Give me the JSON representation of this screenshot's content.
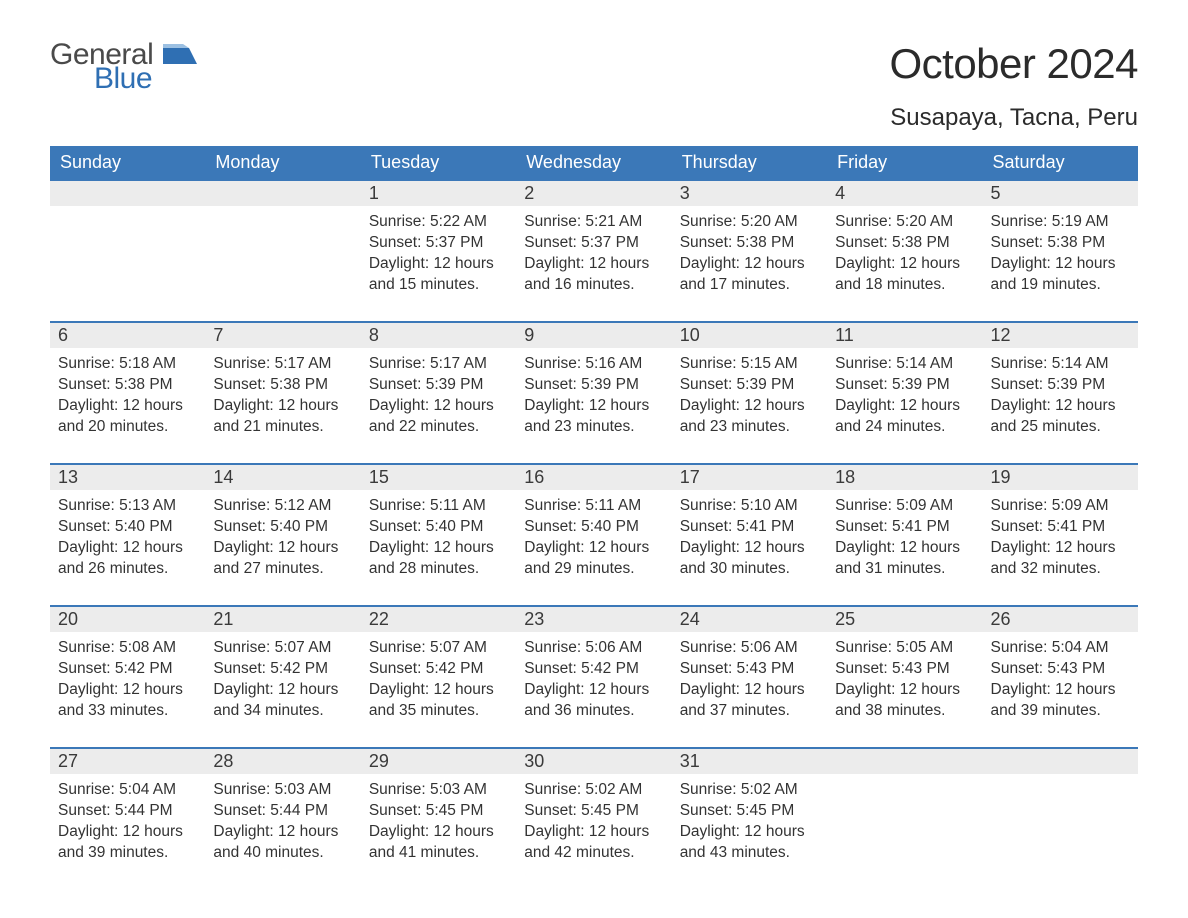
{
  "brand": {
    "word1": "General",
    "word2": "Blue",
    "flag_color": "#2f6fb3",
    "word1_color": "#4a4a4a",
    "word2_color": "#2f6fb3"
  },
  "title": {
    "month_year": "October 2024",
    "location": "Susapaya, Tacna, Peru"
  },
  "colors": {
    "header_bg": "#3b78b8",
    "header_text": "#ffffff",
    "daynum_bg": "#ececec",
    "cell_border_top": "#3b78b8",
    "body_text": "#333333",
    "page_bg": "#ffffff"
  },
  "weekdays": [
    "Sunday",
    "Monday",
    "Tuesday",
    "Wednesday",
    "Thursday",
    "Friday",
    "Saturday"
  ],
  "days": {
    "1": {
      "sunrise": "5:22 AM",
      "sunset": "5:37 PM",
      "daylight": "12 hours and 15 minutes."
    },
    "2": {
      "sunrise": "5:21 AM",
      "sunset": "5:37 PM",
      "daylight": "12 hours and 16 minutes."
    },
    "3": {
      "sunrise": "5:20 AM",
      "sunset": "5:38 PM",
      "daylight": "12 hours and 17 minutes."
    },
    "4": {
      "sunrise": "5:20 AM",
      "sunset": "5:38 PM",
      "daylight": "12 hours and 18 minutes."
    },
    "5": {
      "sunrise": "5:19 AM",
      "sunset": "5:38 PM",
      "daylight": "12 hours and 19 minutes."
    },
    "6": {
      "sunrise": "5:18 AM",
      "sunset": "5:38 PM",
      "daylight": "12 hours and 20 minutes."
    },
    "7": {
      "sunrise": "5:17 AM",
      "sunset": "5:38 PM",
      "daylight": "12 hours and 21 minutes."
    },
    "8": {
      "sunrise": "5:17 AM",
      "sunset": "5:39 PM",
      "daylight": "12 hours and 22 minutes."
    },
    "9": {
      "sunrise": "5:16 AM",
      "sunset": "5:39 PM",
      "daylight": "12 hours and 23 minutes."
    },
    "10": {
      "sunrise": "5:15 AM",
      "sunset": "5:39 PM",
      "daylight": "12 hours and 23 minutes."
    },
    "11": {
      "sunrise": "5:14 AM",
      "sunset": "5:39 PM",
      "daylight": "12 hours and 24 minutes."
    },
    "12": {
      "sunrise": "5:14 AM",
      "sunset": "5:39 PM",
      "daylight": "12 hours and 25 minutes."
    },
    "13": {
      "sunrise": "5:13 AM",
      "sunset": "5:40 PM",
      "daylight": "12 hours and 26 minutes."
    },
    "14": {
      "sunrise": "5:12 AM",
      "sunset": "5:40 PM",
      "daylight": "12 hours and 27 minutes."
    },
    "15": {
      "sunrise": "5:11 AM",
      "sunset": "5:40 PM",
      "daylight": "12 hours and 28 minutes."
    },
    "16": {
      "sunrise": "5:11 AM",
      "sunset": "5:40 PM",
      "daylight": "12 hours and 29 minutes."
    },
    "17": {
      "sunrise": "5:10 AM",
      "sunset": "5:41 PM",
      "daylight": "12 hours and 30 minutes."
    },
    "18": {
      "sunrise": "5:09 AM",
      "sunset": "5:41 PM",
      "daylight": "12 hours and 31 minutes."
    },
    "19": {
      "sunrise": "5:09 AM",
      "sunset": "5:41 PM",
      "daylight": "12 hours and 32 minutes."
    },
    "20": {
      "sunrise": "5:08 AM",
      "sunset": "5:42 PM",
      "daylight": "12 hours and 33 minutes."
    },
    "21": {
      "sunrise": "5:07 AM",
      "sunset": "5:42 PM",
      "daylight": "12 hours and 34 minutes."
    },
    "22": {
      "sunrise": "5:07 AM",
      "sunset": "5:42 PM",
      "daylight": "12 hours and 35 minutes."
    },
    "23": {
      "sunrise": "5:06 AM",
      "sunset": "5:42 PM",
      "daylight": "12 hours and 36 minutes."
    },
    "24": {
      "sunrise": "5:06 AM",
      "sunset": "5:43 PM",
      "daylight": "12 hours and 37 minutes."
    },
    "25": {
      "sunrise": "5:05 AM",
      "sunset": "5:43 PM",
      "daylight": "12 hours and 38 minutes."
    },
    "26": {
      "sunrise": "5:04 AM",
      "sunset": "5:43 PM",
      "daylight": "12 hours and 39 minutes."
    },
    "27": {
      "sunrise": "5:04 AM",
      "sunset": "5:44 PM",
      "daylight": "12 hours and 39 minutes."
    },
    "28": {
      "sunrise": "5:03 AM",
      "sunset": "5:44 PM",
      "daylight": "12 hours and 40 minutes."
    },
    "29": {
      "sunrise": "5:03 AM",
      "sunset": "5:45 PM",
      "daylight": "12 hours and 41 minutes."
    },
    "30": {
      "sunrise": "5:02 AM",
      "sunset": "5:45 PM",
      "daylight": "12 hours and 42 minutes."
    },
    "31": {
      "sunrise": "5:02 AM",
      "sunset": "5:45 PM",
      "daylight": "12 hours and 43 minutes."
    }
  },
  "labels": {
    "sunrise_prefix": "Sunrise: ",
    "sunset_prefix": "Sunset: ",
    "daylight_prefix": "Daylight: "
  },
  "layout": {
    "first_weekday_index": 2,
    "days_in_month": 31
  }
}
